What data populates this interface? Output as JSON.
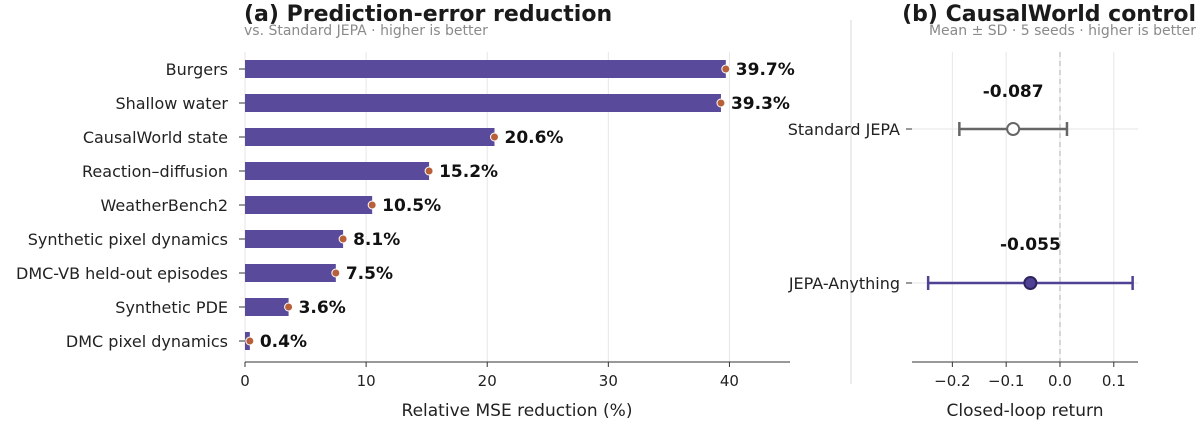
{
  "colors": {
    "bar": "#5a4a9c",
    "dot": "#b8603a",
    "standard": "#666666",
    "jepa": "#4f4193",
    "grid": "#e6e6e6"
  },
  "chart_data": [
    {
      "type": "bar",
      "orientation": "horizontal",
      "title": "(a)  Prediction-error reduction",
      "subtitle": "vs. Standard JEPA  ·  higher is better",
      "xlabel": "Relative MSE reduction (%)",
      "ylabel": "",
      "xlim": [
        0,
        45
      ],
      "xticks": [
        "0",
        "10",
        "20",
        "30",
        "40"
      ],
      "grid": "vertical",
      "categories": [
        "Burgers",
        "Shallow water",
        "CausalWorld state",
        "Reaction–diffusion",
        "WeatherBench2",
        "Synthetic pixel dynamics",
        "DMC-VB held-out episodes",
        "Synthetic PDE",
        "DMC pixel dynamics"
      ],
      "values": [
        39.7,
        39.3,
        20.6,
        15.2,
        10.5,
        8.1,
        7.5,
        3.6,
        0.4
      ],
      "value_labels": [
        "39.7%",
        "39.3%",
        "20.6%",
        "15.2%",
        "10.5%",
        "8.1%",
        "7.5%",
        "3.6%",
        "0.4%"
      ]
    },
    {
      "type": "scatter",
      "subtype": "errorbar",
      "title": "(b)  CausalWorld control",
      "subtitle": "Mean ± SD  ·  5 seeds  ·  higher is better",
      "xlabel": "Closed-loop return",
      "xlim": [
        -0.275,
        0.145
      ],
      "xticks": [
        "−0.2",
        "−0.1",
        "0.0",
        "0.1"
      ],
      "reference_line_x": 0.0,
      "categories": [
        "Standard JEPA",
        "JEPA-Anything"
      ],
      "means": [
        -0.087,
        -0.055
      ],
      "lower": [
        -0.187,
        -0.245
      ],
      "upper": [
        0.013,
        0.135
      ],
      "value_labels": [
        "-0.087",
        "-0.055"
      ]
    }
  ]
}
